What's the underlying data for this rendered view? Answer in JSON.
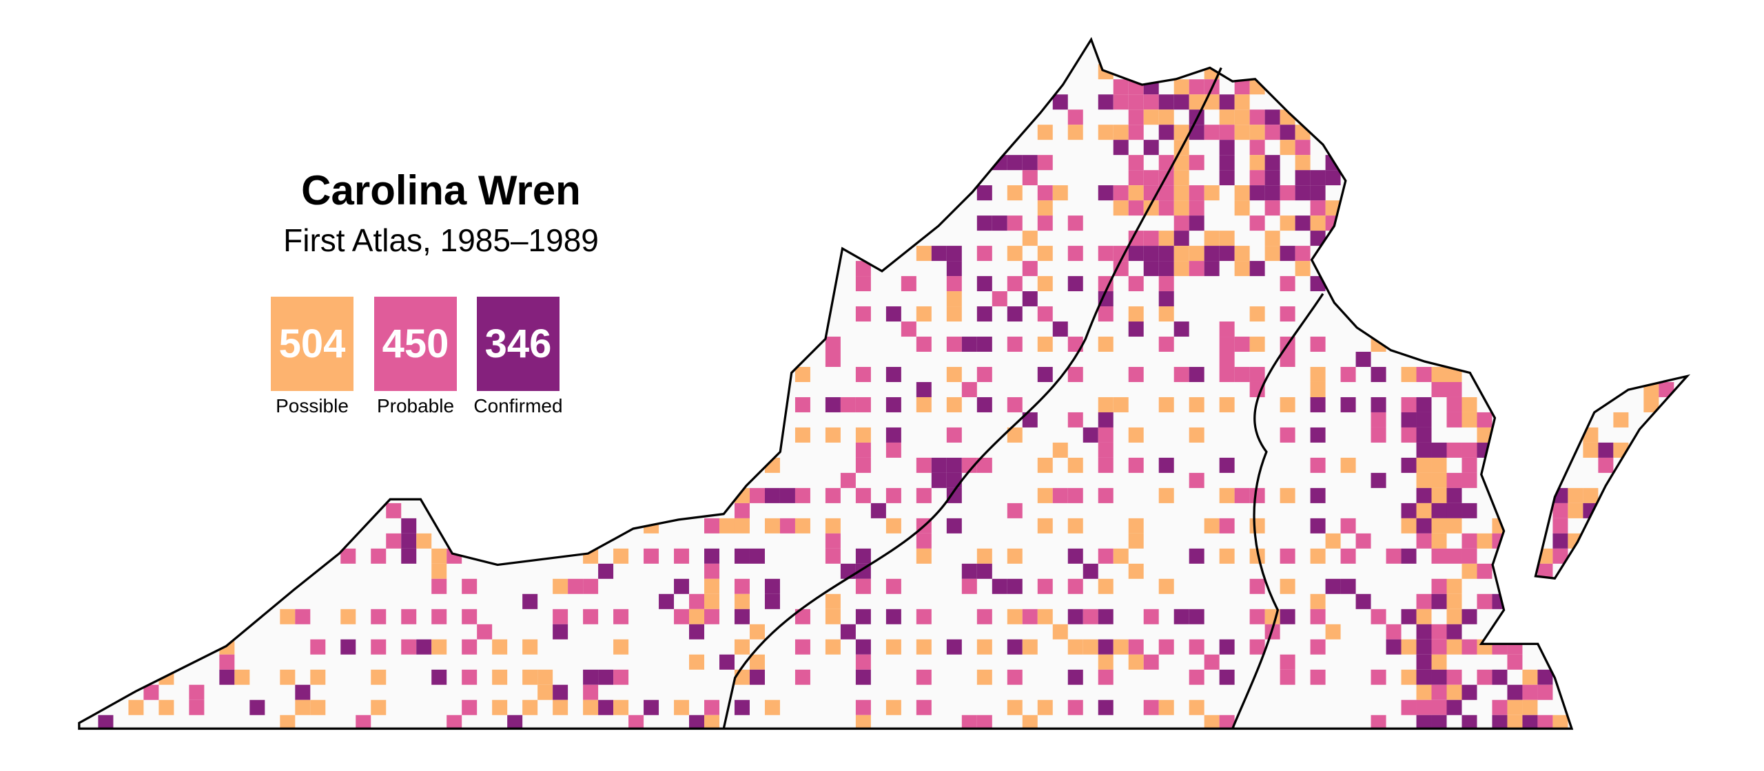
{
  "title": "Carolina Wren",
  "subtitle": "First Atlas, 1985–1989",
  "legend": [
    {
      "label": "Possible",
      "count": "504",
      "color": "#FDB36F"
    },
    {
      "label": "Probable",
      "count": "450",
      "color": "#E05C9A"
    },
    {
      "label": "Confirmed",
      "count": "346",
      "color": "#85217D"
    }
  ],
  "map": {
    "state_fill": "#FAFAFA",
    "outline_color": "#000000",
    "county_line_color": "#888888"
  }
}
